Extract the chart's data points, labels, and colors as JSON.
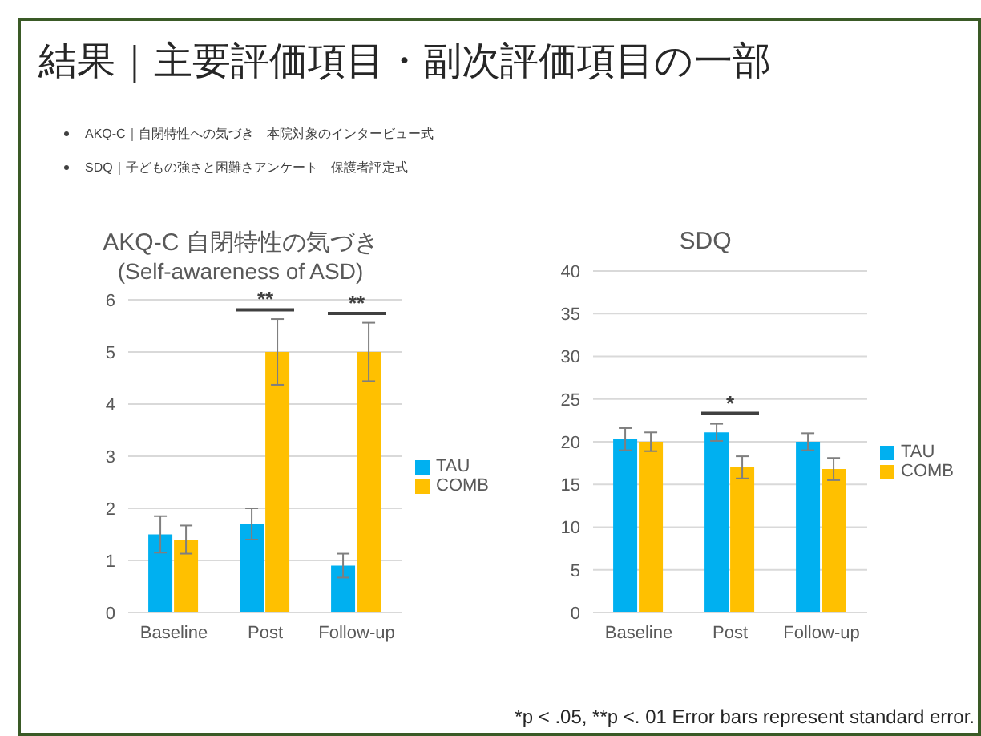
{
  "chart_data": [
    {
      "type": "bar",
      "title": "AKQ-C 自閉特性の気づき",
      "subtitle": "(Self-awareness of ASD)",
      "categories": [
        "Baseline",
        "Post",
        "Follow-up"
      ],
      "series": [
        {
          "name": "TAU",
          "color": "#00b0f0",
          "values": [
            1.5,
            1.7,
            0.9
          ],
          "errors": [
            0.35,
            0.3,
            0.23
          ]
        },
        {
          "name": "COMB",
          "color": "#ffc000",
          "values": [
            1.4,
            5,
            5
          ],
          "errors": [
            0.27,
            0.63,
            0.56
          ]
        }
      ],
      "ylim": [
        0,
        6
      ],
      "yticks": [
        0,
        1,
        2,
        3,
        4,
        5,
        6
      ],
      "grid": "y",
      "legend": "right",
      "annotations": [
        "結果｜主要評価項目・副次評価項目の一部",
        "AKQ-C｜自閉特性への気づき　本院対象のインタービュー式",
        "SDQ｜子どもの強さと困難さアンケート　保護者評定式",
        {
          "text": "**",
          "x": "Post",
          "y": 5
        },
        {
          "text": "**",
          "x": "Follow-up",
          "y": 5
        }
      ]
    },
    {
      "type": "bar",
      "title": "SDQ",
      "categories": [
        "Baseline",
        "Post",
        "Follow-up"
      ],
      "series": [
        {
          "name": "TAU",
          "color": "#00b0f0",
          "values": [
            20.3,
            21.1,
            20.0
          ],
          "errors": [
            1.3,
            1.0,
            1.0
          ]
        },
        {
          "name": "COMB",
          "color": "#ffc000",
          "values": [
            20.0,
            17.0,
            16.8
          ],
          "errors": [
            1.1,
            1.3,
            1.3
          ]
        }
      ],
      "ylim": [
        0,
        40
      ],
      "yticks": [
        0,
        5,
        10,
        15,
        20,
        25,
        30,
        35,
        40
      ],
      "grid": "y",
      "legend": "right",
      "annotations": [
        {
          "text": "*",
          "x": "Post",
          "y": 21.1
        },
        "*p < .05, **p <. 01 Error bars represent standard error."
      ]
    }
  ]
}
